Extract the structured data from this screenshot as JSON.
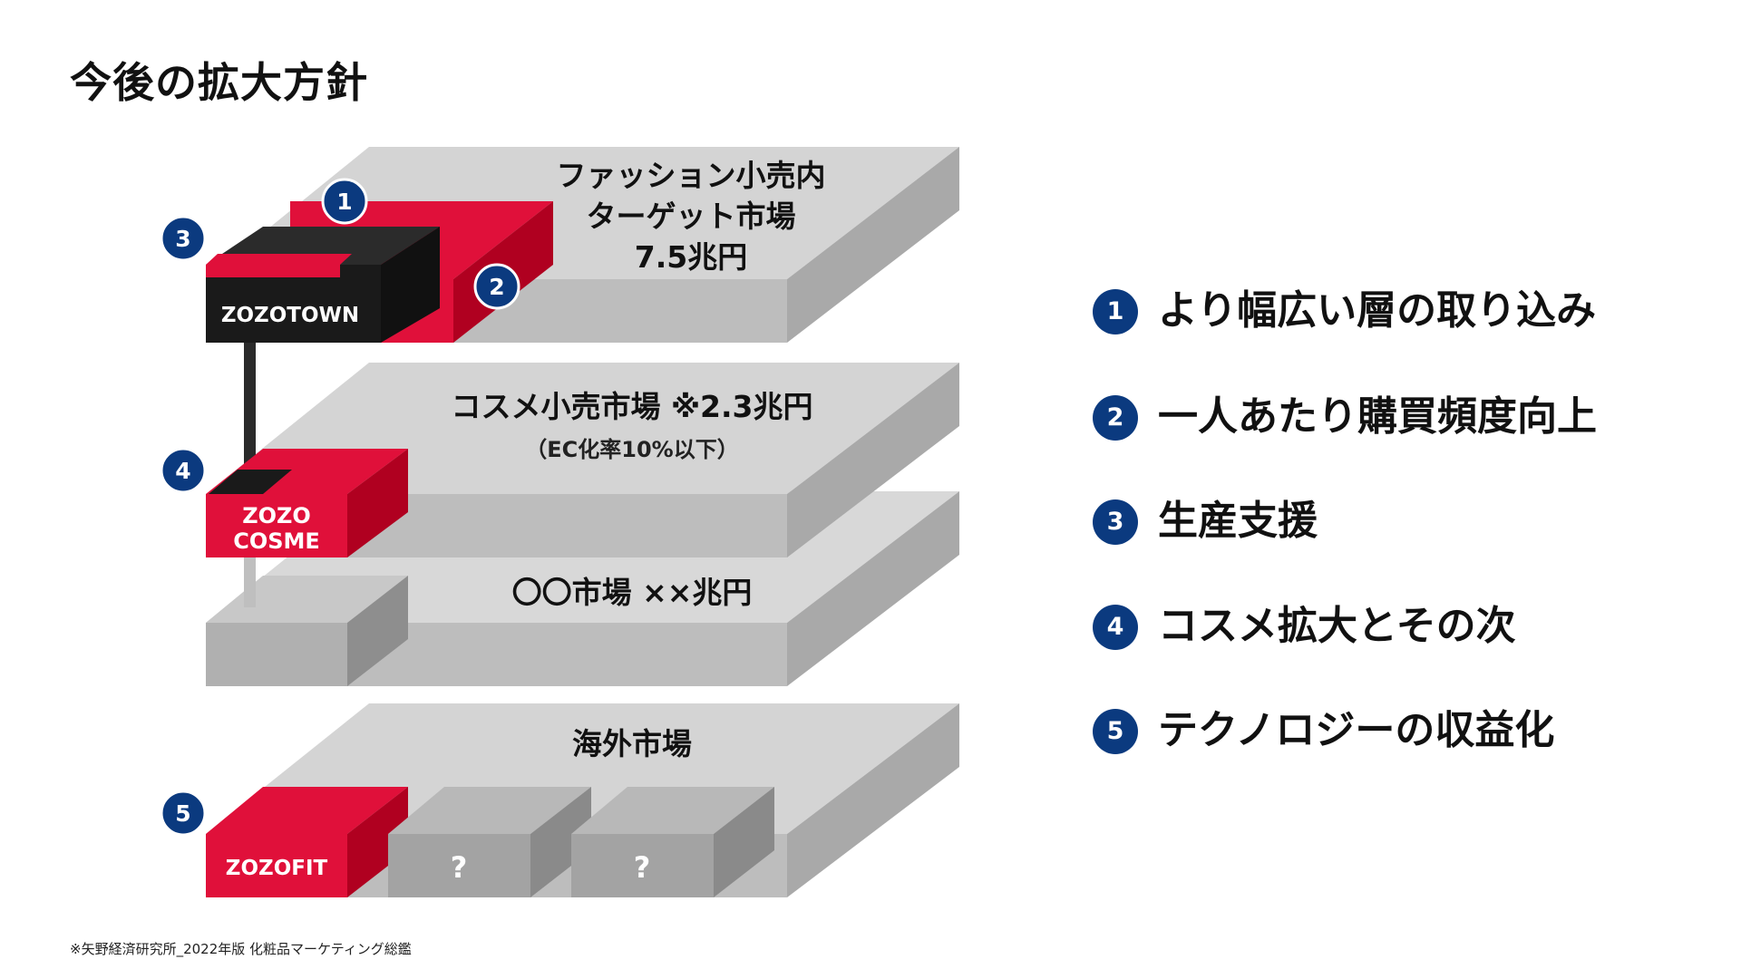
{
  "title": "今後の拡大方針",
  "footnote": "※矢野経済研究所_2022年版 化粧品マーケティング総鑑",
  "markets": {
    "fashion": [
      "ファッション小売内",
      "ターゲット市場",
      "7.5兆円"
    ],
    "cosme": {
      "line1": "コスメ小売市場 ※2.3兆円",
      "line2": "（EC化率10%以下）"
    },
    "other": "〇〇市場 ××兆円",
    "overseas": "海外市場"
  },
  "brands": {
    "zozotown": "ZOZOTOWN",
    "zozocosme": [
      "ZOZO",
      "COSME"
    ],
    "zozofit": "ZOZOFIT",
    "unknown": "?"
  },
  "markers": [
    "1",
    "2",
    "3",
    "4",
    "5"
  ],
  "legend": [
    {
      "num": "1",
      "text": "より幅広い層の取り込み"
    },
    {
      "num": "2",
      "text": "一人あたり購買頻度向上"
    },
    {
      "num": "3",
      "text": "生産支援"
    },
    {
      "num": "4",
      "text": "コスメ拡大とその次"
    },
    {
      "num": "5",
      "text": "テクノロジーの収益化"
    }
  ],
  "colors": {
    "marker": "#0b3a7f",
    "red": "#e0103a",
    "black": "#1a1a1a",
    "grey": "#d4d4d4"
  }
}
